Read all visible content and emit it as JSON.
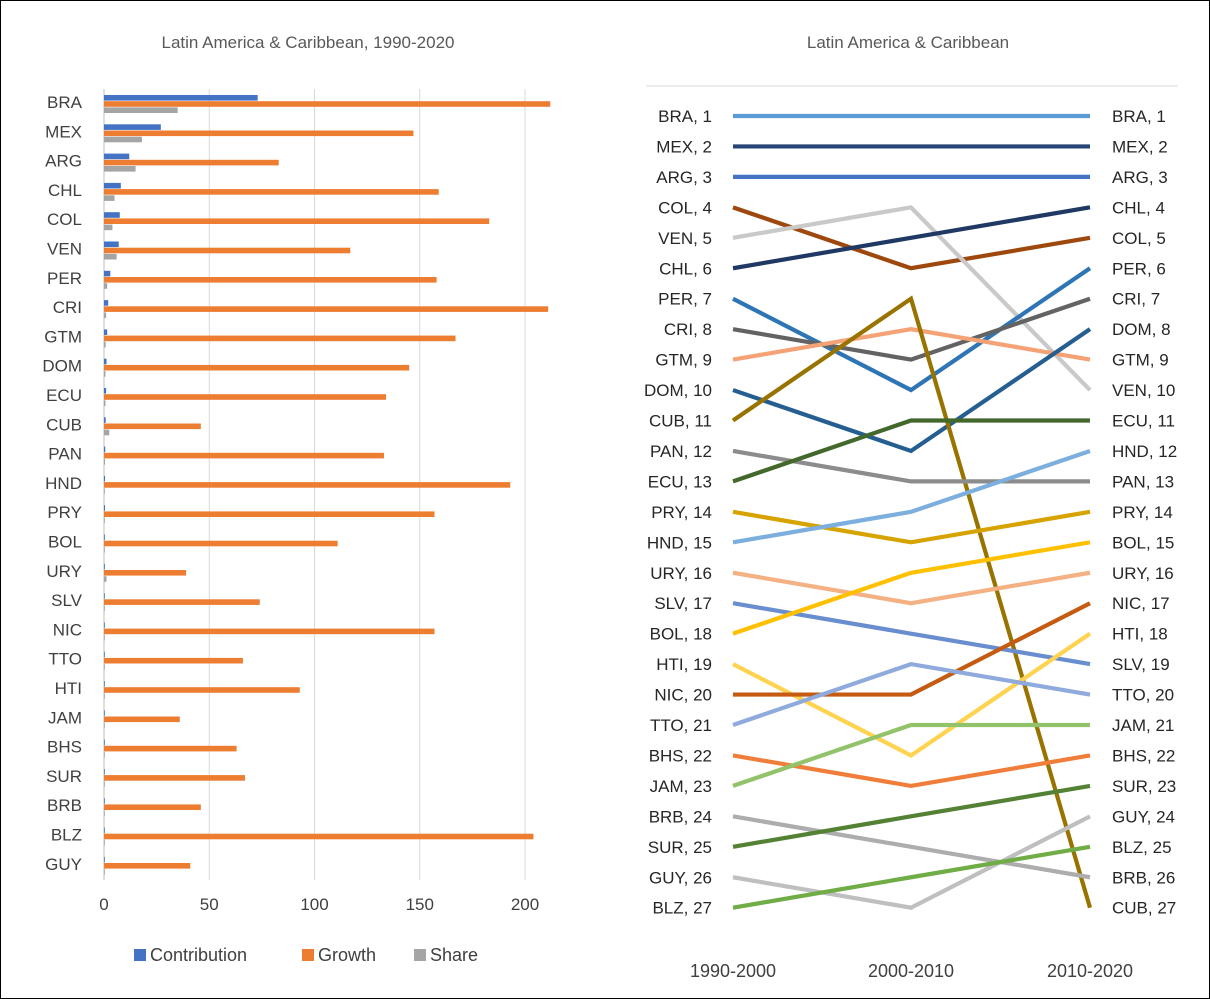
{
  "chart_data": [
    {
      "type": "bar",
      "orientation": "horizontal",
      "title": "Latin America & Caribbean, 1990-2020",
      "categories": [
        "BRA",
        "MEX",
        "ARG",
        "CHL",
        "COL",
        "VEN",
        "PER",
        "CRI",
        "GTM",
        "DOM",
        "ECU",
        "CUB",
        "PAN",
        "HND",
        "PRY",
        "BOL",
        "URY",
        "SLV",
        "NIC",
        "TTO",
        "HTI",
        "JAM",
        "BHS",
        "SUR",
        "BRB",
        "BLZ",
        "GUY"
      ],
      "series": [
        {
          "name": "Contribution",
          "color": "#4472C4",
          "values": [
            73,
            27,
            12,
            8,
            7.5,
            7,
            3,
            2,
            1.5,
            1.2,
            1,
            0.8,
            0.6,
            0.5,
            0.5,
            0.4,
            0.4,
            0.3,
            0.3,
            0.3,
            0.3,
            0.2,
            0.2,
            0.2,
            0.1,
            0.1,
            0.1
          ]
        },
        {
          "name": "Growth",
          "color": "#ED7D31",
          "values": [
            212,
            147,
            83,
            159,
            183,
            117,
            158,
            211,
            167,
            145,
            134,
            46,
            133,
            193,
            157,
            111,
            39,
            74,
            157,
            66,
            93,
            36,
            63,
            67,
            46,
            204,
            41
          ]
        },
        {
          "name": "Share",
          "color": "#A5A5A5",
          "values": [
            35,
            18,
            15,
            5,
            4,
            6,
            1.5,
            1,
            0.8,
            0.7,
            0.7,
            2.5,
            0.5,
            0.4,
            0.4,
            0.4,
            1.2,
            0.3,
            0.3,
            0.3,
            0.2,
            0.2,
            0.2,
            0.1,
            0.1,
            0.1,
            0.1
          ]
        }
      ],
      "xlim": [
        0,
        215
      ],
      "xticks": [
        0,
        50,
        100,
        150,
        200
      ],
      "grid": true,
      "legend": "bottom"
    },
    {
      "type": "line",
      "subtype": "slope",
      "title": "Latin America & Caribbean",
      "periods": [
        "1990-2000",
        "2000-2010",
        "2010-2020"
      ],
      "ylim": [
        1,
        27
      ],
      "y_inverted": true,
      "left_labels": [
        "BRA, 1",
        "MEX, 2",
        "ARG, 3",
        "COL, 4",
        "VEN, 5",
        "CHL, 6",
        "PER, 7",
        "CRI, 8",
        "GTM, 9",
        "DOM, 10",
        "CUB, 11",
        "PAN, 12",
        "ECU, 13",
        "PRY, 14",
        "HND, 15",
        "URY, 16",
        "SLV, 17",
        "BOL, 18",
        "HTI, 19",
        "NIC, 20",
        "TTO, 21",
        "BHS, 22",
        "JAM, 23",
        "BRB, 24",
        "SUR, 25",
        "GUY, 26",
        "BLZ, 27"
      ],
      "right_labels": [
        "BRA, 1",
        "MEX, 2",
        "ARG, 3",
        "CHL, 4",
        "COL, 5",
        "PER, 6",
        "CRI, 7",
        "DOM, 8",
        "GTM, 9",
        "VEN, 10",
        "ECU, 11",
        "HND, 12",
        "PAN, 13",
        "PRY, 14",
        "BOL, 15",
        "URY, 16",
        "NIC, 17",
        "HTI, 18",
        "SLV, 19",
        "TTO, 20",
        "JAM, 21",
        "BHS, 22",
        "SUR, 23",
        "GUY, 24",
        "BLZ, 25",
        "BRB, 26",
        "CUB, 27"
      ],
      "series": [
        {
          "name": "BRA",
          "color": "#5B9BD5",
          "ranks": [
            1,
            1,
            1
          ]
        },
        {
          "name": "MEX",
          "color": "#264478",
          "ranks": [
            2,
            2,
            2
          ]
        },
        {
          "name": "ARG",
          "color": "#4472C4",
          "ranks": [
            3,
            3,
            3
          ]
        },
        {
          "name": "COL",
          "color": "#9E480E",
          "ranks": [
            4,
            6,
            5
          ]
        },
        {
          "name": "VEN",
          "color": "#C9C9C9",
          "ranks": [
            5,
            4,
            10
          ]
        },
        {
          "name": "CHL",
          "color": "#203864",
          "ranks": [
            6,
            5,
            4
          ]
        },
        {
          "name": "PER",
          "color": "#2E75B6",
          "ranks": [
            7,
            10,
            6
          ]
        },
        {
          "name": "CRI",
          "color": "#636363",
          "ranks": [
            8,
            9,
            7
          ]
        },
        {
          "name": "GTM",
          "color": "#F4A276",
          "ranks": [
            9,
            8,
            9
          ]
        },
        {
          "name": "DOM",
          "color": "#255E91",
          "ranks": [
            10,
            12,
            8
          ]
        },
        {
          "name": "CUB",
          "color": "#997300",
          "ranks": [
            11,
            7,
            27
          ]
        },
        {
          "name": "PAN",
          "color": "#8C8C8C",
          "ranks": [
            12,
            13,
            13
          ]
        },
        {
          "name": "ECU",
          "color": "#43682B",
          "ranks": [
            13,
            11,
            11
          ]
        },
        {
          "name": "PRY",
          "color": "#D6A300",
          "ranks": [
            14,
            15,
            14
          ]
        },
        {
          "name": "HND",
          "color": "#7CAFDD",
          "ranks": [
            15,
            14,
            12
          ]
        },
        {
          "name": "URY",
          "color": "#F4B183",
          "ranks": [
            16,
            17,
            16
          ]
        },
        {
          "name": "SLV",
          "color": "#698ED0",
          "ranks": [
            17,
            18,
            19
          ]
        },
        {
          "name": "BOL",
          "color": "#FFC000",
          "ranks": [
            18,
            16,
            15
          ]
        },
        {
          "name": "HTI",
          "color": "#FFD34F",
          "ranks": [
            19,
            22,
            18
          ]
        },
        {
          "name": "NIC",
          "color": "#C55A11",
          "ranks": [
            20,
            20,
            17
          ]
        },
        {
          "name": "TTO",
          "color": "#8FAADC",
          "ranks": [
            21,
            19,
            20
          ]
        },
        {
          "name": "BHS",
          "color": "#F07D3A",
          "ranks": [
            22,
            23,
            22
          ]
        },
        {
          "name": "JAM",
          "color": "#92C36A",
          "ranks": [
            23,
            21,
            21
          ]
        },
        {
          "name": "BRB",
          "color": "#ADADAD",
          "ranks": [
            24,
            25,
            26
          ]
        },
        {
          "name": "SUR",
          "color": "#548235",
          "ranks": [
            25,
            24,
            23
          ]
        },
        {
          "name": "GUY",
          "color": "#BFBFBF",
          "ranks": [
            26,
            27,
            24
          ]
        },
        {
          "name": "BLZ",
          "color": "#70AD47",
          "ranks": [
            27,
            26,
            25
          ]
        }
      ]
    }
  ]
}
